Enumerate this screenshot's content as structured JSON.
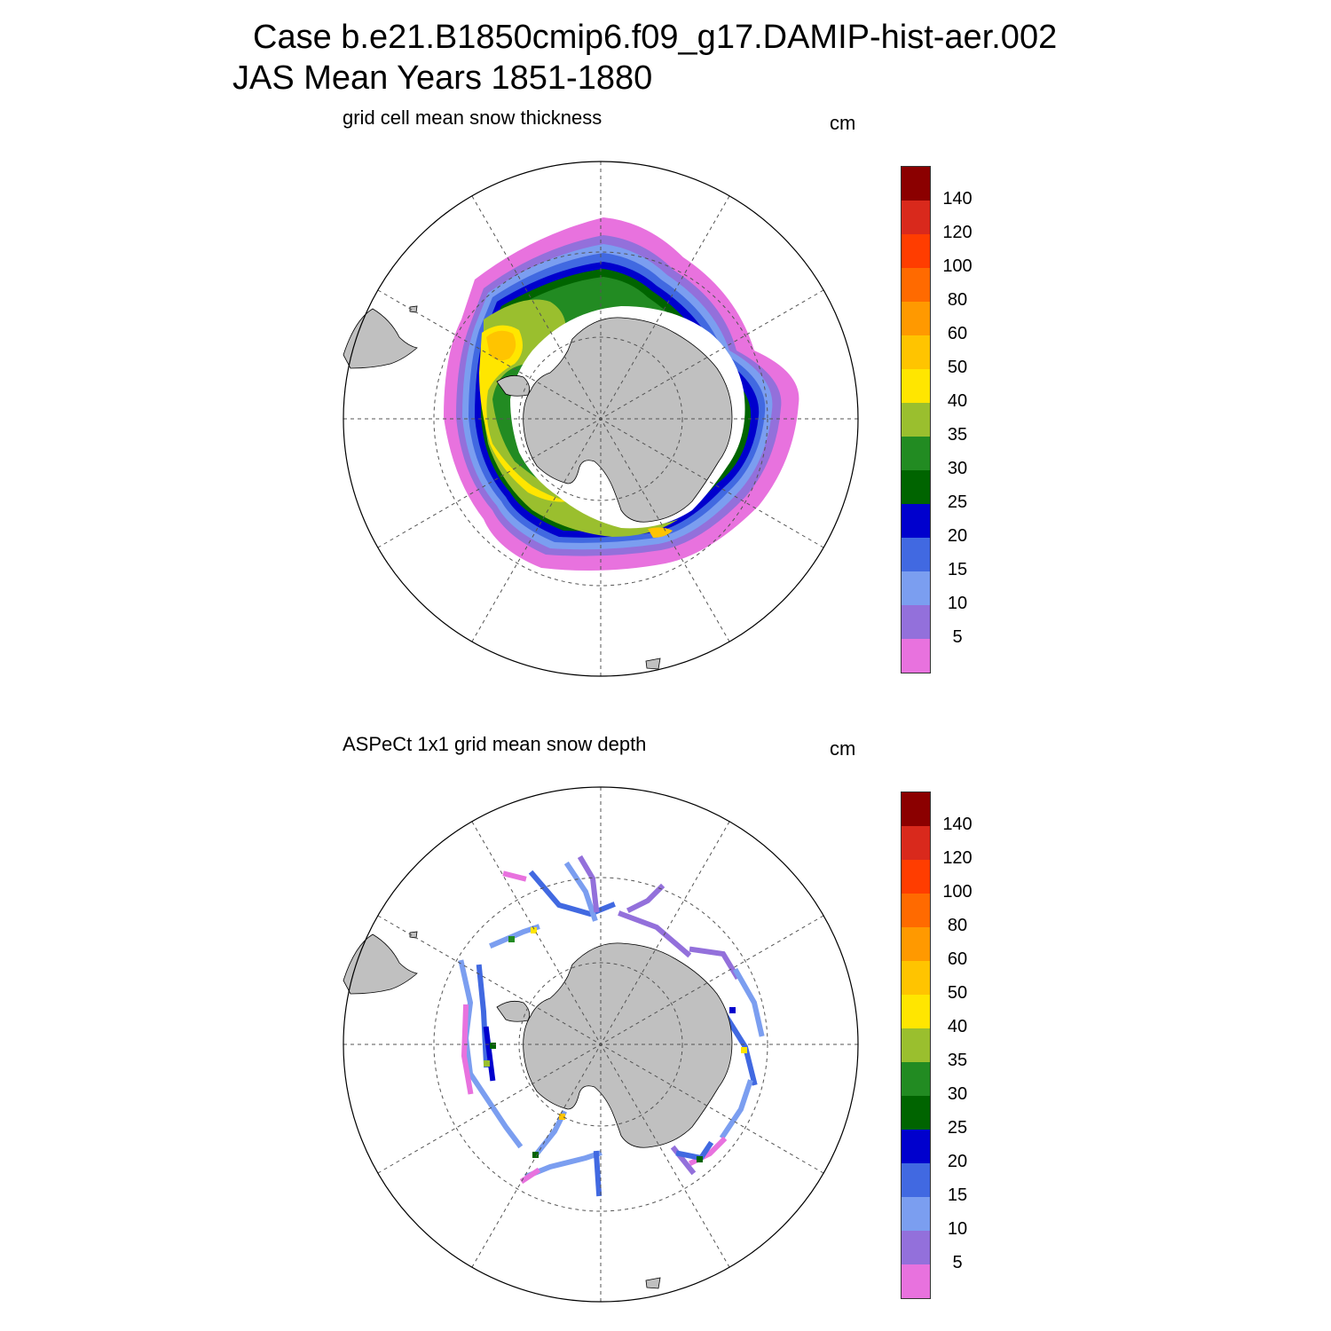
{
  "header": {
    "line1": "Case b.e21.B1850cmip6.f09_g17.DAMIP-hist-aer.002",
    "line2": "JAS Mean   Years 1851-1880"
  },
  "panels": [
    {
      "title": "grid cell mean snow thickness",
      "unit": "cm"
    },
    {
      "title": "ASPeCt 1x1 grid mean snow depth",
      "unit": "cm"
    }
  ],
  "colorbar": {
    "labels": [
      "140",
      "120",
      "100",
      "80",
      "60",
      "50",
      "40",
      "35",
      "30",
      "25",
      "20",
      "15",
      "10",
      "5"
    ],
    "colors": [
      "#8b0000",
      "#d9291c",
      "#ff3d00",
      "#ff6a00",
      "#ff9900",
      "#ffc400",
      "#ffe600",
      "#9abf2e",
      "#228b22",
      "#006400",
      "#0000cd",
      "#4169e1",
      "#7b9ef0",
      "#9370db",
      "#e872de"
    ]
  },
  "map_colors": {
    "land": "#c0c0c0",
    "land_outline": "#000000",
    "grid_line": "#555555"
  }
}
